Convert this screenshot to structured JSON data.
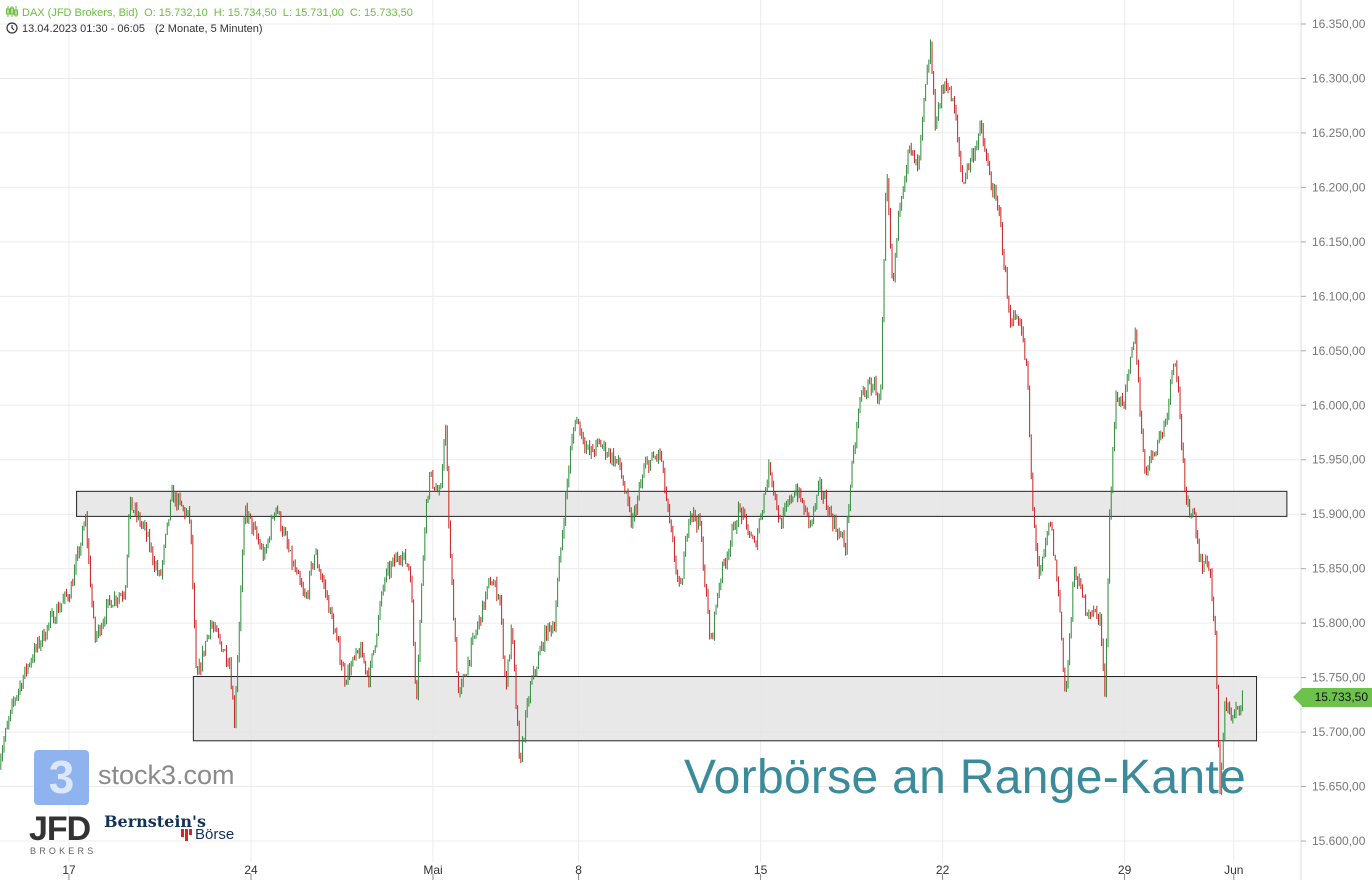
{
  "header": {
    "instrument": "DAX (JFD Brokers, Bid)",
    "open": "O: 15.732,10",
    "high": "H: 15.734,50",
    "low": "L: 15.731,00",
    "close": "C: 15.733,50",
    "range": "13.04.2023 01:30 - 06:05",
    "period": "(2 Monate, 5 Minuten)",
    "icons": [
      "candlestick-icon",
      "clock-icon"
    ]
  },
  "last_price": "15.733,50",
  "annotation": "Vorbörse an Range-Kante",
  "logos": {
    "stock3": "stock3.com",
    "stock3_mark": "3",
    "jfd": "JFD",
    "jfd_sub": "BROKERS",
    "bernstein": "Bernstein's",
    "borse": "Börse"
  },
  "colors": {
    "up": "#2e8b3a",
    "down": "#c9201f",
    "header": "#6abf3e",
    "price_tag": "#6cc24a",
    "annotation": "#3b8b9b",
    "zone_fill": "#e4e4e4"
  },
  "chart_data": {
    "type": "candlestick",
    "title": "",
    "ylim": [
      15590,
      16370
    ],
    "grid": true,
    "y_ticks": [
      {
        "value": 16350,
        "label": "16.350,00"
      },
      {
        "value": 16300,
        "label": "16.300,00"
      },
      {
        "value": 16250,
        "label": "16.250,00"
      },
      {
        "value": 16200,
        "label": "16.200,00"
      },
      {
        "value": 16150,
        "label": "16.150,00"
      },
      {
        "value": 16100,
        "label": "16.100,00"
      },
      {
        "value": 16050,
        "label": "16.050,00"
      },
      {
        "value": 16000,
        "label": "16.000,00"
      },
      {
        "value": 15950,
        "label": "15.950,00"
      },
      {
        "value": 15900,
        "label": "15.900,00"
      },
      {
        "value": 15850,
        "label": "15.850,00"
      },
      {
        "value": 15800,
        "label": "15.800,00"
      },
      {
        "value": 15750,
        "label": "15.750,00"
      },
      {
        "value": 15700,
        "label": "15.700,00"
      },
      {
        "value": 15650,
        "label": "15.650,00"
      },
      {
        "value": 15600,
        "label": "15.600,00"
      }
    ],
    "x_ticks": [
      {
        "date": "2023-04-17",
        "label": "17"
      },
      {
        "date": "2023-04-24",
        "label": "24"
      },
      {
        "date": "2023-05-02",
        "label": "Mai"
      },
      {
        "date": "2023-05-08",
        "label": "8"
      },
      {
        "date": "2023-05-15",
        "label": "15"
      },
      {
        "date": "2023-05-22",
        "label": "22"
      },
      {
        "date": "2023-05-29",
        "label": "29"
      },
      {
        "date": "2023-06-01",
        "label": "Jun"
      }
    ],
    "zones": [
      {
        "from": "2023-04-17T05",
        "to": "2023-06-02T11",
        "low": 15898,
        "high": 15921
      },
      {
        "from": "2023-04-20T10",
        "to": "2023-06-01T15",
        "low": 15692,
        "high": 15751
      }
    ],
    "price_path": [
      [
        "2023-04-13T02",
        15675
      ],
      [
        "2023-04-13T12",
        15730
      ],
      [
        "2023-04-13T22",
        15765
      ],
      [
        "2023-04-14T15",
        15810
      ],
      [
        "2023-04-17T01",
        15830
      ],
      [
        "2023-04-17T11",
        15895
      ],
      [
        "2023-04-17T17",
        15785
      ],
      [
        "2023-04-18T03",
        15820
      ],
      [
        "2023-04-18T13",
        15830
      ],
      [
        "2023-04-18T16",
        15910
      ],
      [
        "2023-04-19T02",
        15885
      ],
      [
        "2023-04-19T12",
        15840
      ],
      [
        "2023-04-19T20",
        15918
      ],
      [
        "2023-04-20T08",
        15895
      ],
      [
        "2023-04-20T12",
        15745
      ],
      [
        "2023-04-20T21",
        15800
      ],
      [
        "2023-04-21T10",
        15765
      ],
      [
        "2023-04-21T13",
        15710
      ],
      [
        "2023-04-21T20",
        15905
      ],
      [
        "2023-04-24T09",
        15860
      ],
      [
        "2023-04-24T16",
        15910
      ],
      [
        "2023-04-25T02",
        15860
      ],
      [
        "2023-04-25T12",
        15820
      ],
      [
        "2023-04-25T18",
        15865
      ],
      [
        "2023-04-26T01",
        15830
      ],
      [
        "2023-04-26T14",
        15750
      ],
      [
        "2023-04-27T00",
        15775
      ],
      [
        "2023-04-27T06",
        15750
      ],
      [
        "2023-04-27T16",
        15840
      ],
      [
        "2023-04-28T02",
        15865
      ],
      [
        "2023-04-28T09",
        15850
      ],
      [
        "2023-04-28T13",
        15730
      ],
      [
        "2023-04-28T19",
        15905
      ],
      [
        "2023-04-28T22",
        15935
      ],
      [
        "2023-05-02T05",
        15915
      ],
      [
        "2023-05-02T08",
        15990
      ],
      [
        "2023-05-02T11",
        15870
      ],
      [
        "2023-05-02T17",
        15730
      ],
      [
        "2023-05-03T00",
        15770
      ],
      [
        "2023-05-03T14",
        15840
      ],
      [
        "2023-05-03T20",
        15825
      ],
      [
        "2023-05-04T00",
        15740
      ],
      [
        "2023-05-04T04",
        15795
      ],
      [
        "2023-05-04T09",
        15670
      ],
      [
        "2023-05-04T16",
        15740
      ],
      [
        "2023-05-05T02",
        15790
      ],
      [
        "2023-05-05T08",
        15800
      ],
      [
        "2023-05-05T12",
        15865
      ],
      [
        "2023-05-05T18",
        15950
      ],
      [
        "2023-05-05T22",
        15990
      ],
      [
        "2023-05-08T07",
        15955
      ],
      [
        "2023-05-08T14",
        15965
      ],
      [
        "2023-05-09T03",
        15945
      ],
      [
        "2023-05-09T11",
        15890
      ],
      [
        "2023-05-09T20",
        15945
      ],
      [
        "2023-05-10T06",
        15955
      ],
      [
        "2023-05-10T11",
        15900
      ],
      [
        "2023-05-10T19",
        15825
      ],
      [
        "2023-05-11T01",
        15905
      ],
      [
        "2023-05-11T08",
        15890
      ],
      [
        "2023-05-11T15",
        15780
      ],
      [
        "2023-05-11T21",
        15840
      ],
      [
        "2023-05-12T10",
        15905
      ],
      [
        "2023-05-12T20",
        15870
      ],
      [
        "2023-05-15T06",
        15945
      ],
      [
        "2023-05-15T13",
        15890
      ],
      [
        "2023-05-15T23",
        15925
      ],
      [
        "2023-05-16T09",
        15890
      ],
      [
        "2023-05-16T15",
        15925
      ],
      [
        "2023-05-17T01",
        15890
      ],
      [
        "2023-05-17T08",
        15870
      ],
      [
        "2023-05-17T11",
        15925
      ],
      [
        "2023-05-17T18",
        16010
      ],
      [
        "2023-05-18T03",
        16020
      ],
      [
        "2023-05-18T07",
        16000
      ],
      [
        "2023-05-18T11",
        16215
      ],
      [
        "2023-05-18T15",
        16105
      ],
      [
        "2023-05-18T20",
        16190
      ],
      [
        "2023-05-19T02",
        16235
      ],
      [
        "2023-05-19T08",
        16215
      ],
      [
        "2023-05-19T12",
        16280
      ],
      [
        "2023-05-19T16",
        16330
      ],
      [
        "2023-05-19T19",
        16260
      ],
      [
        "2023-05-22T02",
        16300
      ],
      [
        "2023-05-22T08",
        16270
      ],
      [
        "2023-05-22T13",
        16205
      ],
      [
        "2023-05-22T21",
        16235
      ],
      [
        "2023-05-23T01",
        16255
      ],
      [
        "2023-05-23T07",
        16210
      ],
      [
        "2023-05-23T14",
        16170
      ],
      [
        "2023-05-23T20",
        16080
      ],
      [
        "2023-05-24T03",
        16080
      ],
      [
        "2023-05-24T08",
        16025
      ],
      [
        "2023-05-24T11",
        15910
      ],
      [
        "2023-05-24T16",
        15840
      ],
      [
        "2023-05-24T23",
        15895
      ],
      [
        "2023-05-25T05",
        15820
      ],
      [
        "2023-05-25T09",
        15730
      ],
      [
        "2023-05-25T15",
        15850
      ],
      [
        "2023-05-25T22",
        15815
      ],
      [
        "2023-05-26T08",
        15805
      ],
      [
        "2023-05-26T11",
        15730
      ],
      [
        "2023-05-26T14",
        15895
      ],
      [
        "2023-05-26T18",
        16005
      ],
      [
        "2023-05-29T00",
        16005
      ],
      [
        "2023-05-29T07",
        16065
      ],
      [
        "2023-05-29T13",
        15940
      ],
      [
        "2023-05-29T20",
        15960
      ],
      [
        "2023-05-30T03",
        15985
      ],
      [
        "2023-05-30T09",
        16050
      ],
      [
        "2023-05-30T12",
        16005
      ],
      [
        "2023-05-30T16",
        15910
      ],
      [
        "2023-05-30T22",
        15900
      ],
      [
        "2023-05-31T02",
        15855
      ],
      [
        "2023-05-31T08",
        15855
      ],
      [
        "2023-05-31T12",
        15780
      ],
      [
        "2023-05-31T15",
        15635
      ],
      [
        "2023-05-31T18",
        15730
      ],
      [
        "2023-05-31T23",
        15710
      ],
      [
        "2023-06-01T06",
        15733.5
      ]
    ],
    "last": 15733.5
  }
}
